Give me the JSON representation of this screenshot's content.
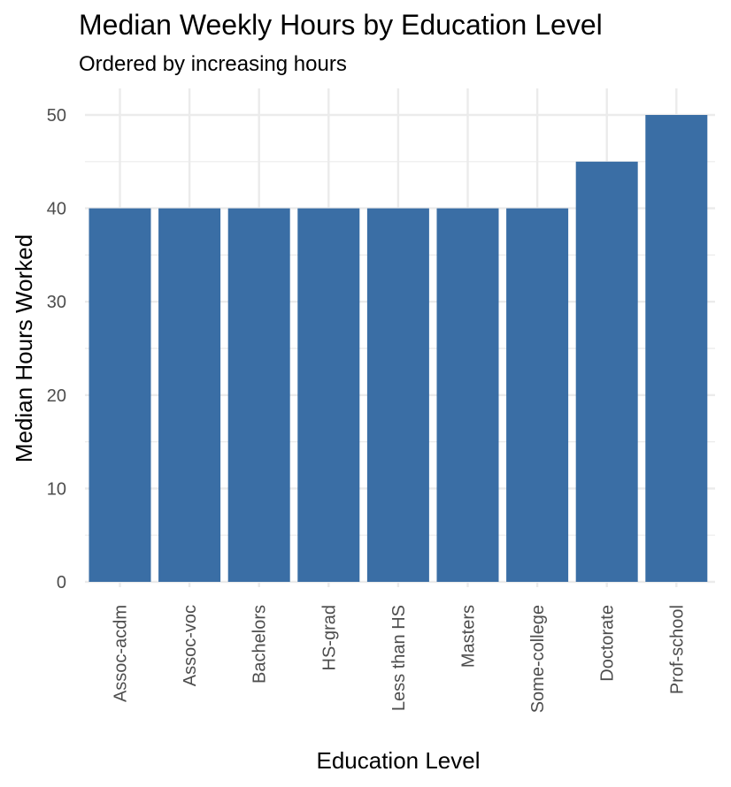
{
  "chart_data": {
    "type": "bar",
    "title": "Median Weekly Hours by Education Level",
    "subtitle": "Ordered by increasing hours",
    "xlabel": "Education Level",
    "ylabel": "Median Hours Worked",
    "categories": [
      "Assoc-acdm",
      "Assoc-voc",
      "Bachelors",
      "HS-grad",
      "Less than HS",
      "Masters",
      "Some-college",
      "Doctorate",
      "Prof-school"
    ],
    "values": [
      40,
      40,
      40,
      40,
      40,
      40,
      40,
      45,
      50
    ],
    "ylim": [
      0,
      50
    ],
    "yticks": [
      0,
      10,
      20,
      30,
      40,
      50
    ],
    "grid": true,
    "bar_color": "#3A6EA5",
    "grid_color": "#EBEBEB"
  }
}
